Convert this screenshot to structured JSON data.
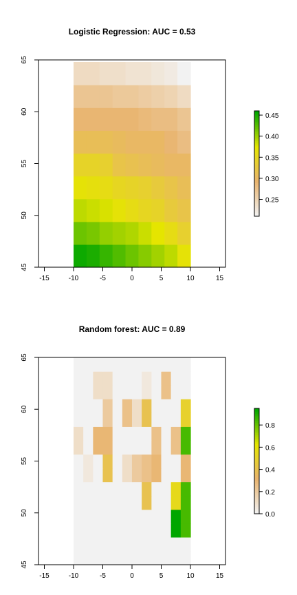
{
  "chart_data": [
    {
      "type": "heatmap",
      "title": "Logistic Regression: AUC =  0.53",
      "xlabel": "",
      "ylabel": "",
      "xlim": [
        -16,
        16
      ],
      "ylim": [
        45,
        65
      ],
      "x_ticks": [
        -15,
        -10,
        -5,
        0,
        5,
        10,
        15
      ],
      "y_ticks": [
        45,
        50,
        55,
        60,
        65
      ],
      "x_tick_labels": [
        "-15",
        "-10",
        "-5",
        "0",
        "5",
        "10",
        "15"
      ],
      "y_tick_labels": [
        "45",
        "50",
        "55",
        "60",
        "65"
      ],
      "cell_x": [
        -8.89,
        -6.67,
        -4.44,
        -2.22,
        0,
        2.22,
        4.44,
        6.67,
        8.89
      ],
      "cell_y": [
        46.1,
        48.3,
        50.5,
        52.7,
        54.9,
        57.1,
        59.3,
        61.5,
        63.7
      ],
      "values": [
        [
          0.455,
          0.45,
          0.44,
          0.43,
          0.42,
          0.41,
          0.4,
          0.39,
          0.37
        ],
        [
          0.42,
          0.415,
          0.405,
          0.4,
          0.395,
          0.385,
          0.375,
          0.36,
          0.34
        ],
        [
          0.39,
          0.385,
          0.38,
          0.37,
          0.36,
          0.35,
          0.345,
          0.33,
          0.32
        ],
        [
          0.37,
          0.365,
          0.36,
          0.35,
          0.345,
          0.34,
          0.33,
          0.32,
          0.31
        ],
        [
          0.345,
          0.345,
          0.34,
          0.32,
          0.315,
          0.31,
          0.305,
          0.3,
          0.3
        ],
        [
          0.31,
          0.31,
          0.31,
          0.305,
          0.3,
          0.3,
          0.3,
          0.29,
          0.28
        ],
        [
          0.29,
          0.29,
          0.29,
          0.29,
          0.29,
          0.285,
          0.28,
          0.28,
          0.27
        ],
        [
          0.27,
          0.27,
          0.27,
          0.265,
          0.265,
          0.26,
          0.255,
          0.25,
          0.24
        ],
        [
          0.24,
          0.24,
          0.235,
          0.235,
          0.23,
          0.23,
          0.225,
          0.22,
          0.21
        ]
      ],
      "colorbar": {
        "min": 0.21,
        "max": 0.46,
        "ticks": [
          0.25,
          0.3,
          0.35,
          0.4,
          0.45
        ],
        "tick_labels": [
          "0.25",
          "0.30",
          "0.35",
          "0.40",
          "0.45"
        ]
      }
    },
    {
      "type": "heatmap",
      "title": "Random forest: AUC =  0.89",
      "xlabel": "",
      "ylabel": "",
      "xlim": [
        -16,
        16
      ],
      "ylim": [
        45,
        65
      ],
      "x_ticks": [
        -15,
        -10,
        -5,
        0,
        5,
        10,
        15
      ],
      "y_ticks": [
        45,
        50,
        55,
        60,
        65
      ],
      "x_tick_labels": [
        "-15",
        "-10",
        "-5",
        "0",
        "5",
        "10",
        "15"
      ],
      "y_tick_labels": [
        "45",
        "50",
        "55",
        "60",
        "65"
      ],
      "cell_x": [
        -9.17,
        -7.5,
        -5.83,
        -4.17,
        -2.5,
        -0.83,
        0.83,
        2.5,
        4.17,
        5.83,
        7.5,
        9.17
      ],
      "cell_y": [
        45.67,
        47.0,
        48.33,
        49.67,
        51.0,
        52.33,
        53.67,
        55.0,
        56.33,
        57.67,
        59.0,
        60.33,
        61.67,
        63.0,
        64.33
      ],
      "values": [
        [
          0,
          0,
          0,
          0,
          0,
          0,
          0,
          0,
          0,
          0,
          0,
          0
        ],
        [
          0,
          0,
          0,
          0,
          0,
          0,
          0,
          0,
          0,
          0,
          0,
          0
        ],
        [
          0,
          0,
          0,
          0,
          0,
          0,
          0,
          0,
          0,
          0,
          0.95,
          0.85
        ],
        [
          0,
          0,
          0,
          0,
          0,
          0,
          0,
          0,
          0,
          0,
          0.95,
          0.85
        ],
        [
          0,
          0,
          0,
          0,
          0,
          0,
          0,
          0.4,
          0,
          0,
          0.55,
          0.85
        ],
        [
          0,
          0,
          0,
          0,
          0,
          0,
          0,
          0.4,
          0,
          0,
          0.55,
          0.85
        ],
        [
          0,
          0.05,
          0,
          0.4,
          0,
          0.1,
          0.2,
          0.25,
          0.3,
          0,
          0,
          0.3
        ],
        [
          0,
          0.05,
          0,
          0.4,
          0,
          0.1,
          0.2,
          0.25,
          0.3,
          0,
          0,
          0.3
        ],
        [
          0.1,
          0,
          0.3,
          0.3,
          0,
          0,
          0,
          0,
          0.25,
          0,
          0.25,
          0.85
        ],
        [
          0.1,
          0,
          0.3,
          0.3,
          0,
          0,
          0,
          0,
          0.25,
          0,
          0.25,
          0.85
        ],
        [
          0,
          0,
          0,
          0.2,
          0,
          0.25,
          0.1,
          0.4,
          0,
          0,
          0,
          0.5
        ],
        [
          0,
          0,
          0,
          0.2,
          0,
          0.25,
          0.1,
          0.4,
          0,
          0,
          0,
          0.5
        ],
        [
          0,
          0,
          0.1,
          0.1,
          0,
          0,
          0,
          0.05,
          0,
          0.25,
          0,
          0
        ],
        [
          0,
          0,
          0.1,
          0.1,
          0,
          0,
          0,
          0.05,
          0,
          0.25,
          0,
          0
        ],
        [
          0,
          0,
          0,
          0,
          0,
          0,
          0,
          0,
          0,
          0,
          0,
          0
        ]
      ],
      "colorbar": {
        "min": 0.0,
        "max": 0.95,
        "ticks": [
          0.0,
          0.2,
          0.4,
          0.6,
          0.8
        ],
        "tick_labels": [
          "0.0",
          "0.2",
          "0.4",
          "0.6",
          "0.8"
        ]
      }
    }
  ],
  "colors": {
    "palette_low": "#f2f2f2",
    "palette_tan": "#e9b46e",
    "palette_yellow": "#e5e500",
    "palette_green": "#00a600"
  }
}
